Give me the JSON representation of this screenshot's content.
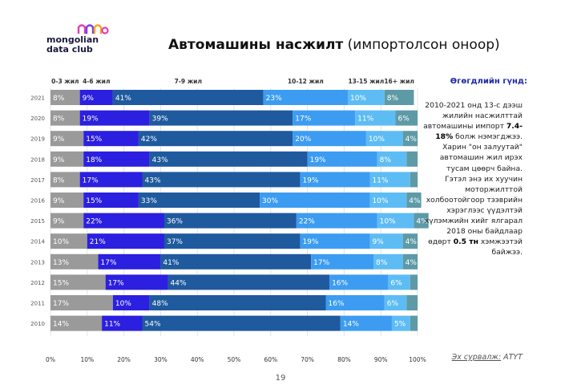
{
  "logo": {
    "line1": "mongolian",
    "line2": "data club",
    "colors": [
      "#e23fb3",
      "#7b3fe2",
      "#f5a623"
    ]
  },
  "title": {
    "bold": "Автомашины насжилт",
    "rest": " (импортолсон оноор)"
  },
  "side": {
    "heading": "Өгөгдлийн гүнд:",
    "p1": "2010-2021 онд 13-с дээш жилийн насжилттай автомашины импорт",
    "p1_bold": "7.4-18%",
    "p1_end": " болж нэмэгджээ.",
    "p2": "Харин \"он залуутай\" автомашин жил ирэх тусам цөөрч байна. Гэтэл энэ их хуучин моторжилттой холбоотойгоор тээврийн хэрэглээс үүдэлтэй хүлэмжийн хийг ялгарал 2018 оны байдлаар өдөрт ",
    "p2_bold": "0.5 тн",
    "p2_end": " хэмжээтэй байжээ."
  },
  "source": {
    "label": "Эх сурвалж:",
    "value": " АТҮТ"
  },
  "page_number": "19",
  "chart_data": {
    "type": "bar",
    "orientation": "horizontal",
    "stacked": true,
    "categories": [
      "2021",
      "2020",
      "2019",
      "2018",
      "2017",
      "2016",
      "2015",
      "2014",
      "2013",
      "2012",
      "2011",
      "2010"
    ],
    "series": [
      {
        "name": "0-3 жил",
        "color": "#9a9a9a",
        "values": [
          8,
          8,
          9,
          9,
          8,
          9,
          9,
          10,
          13,
          15,
          17,
          14
        ]
      },
      {
        "name": "4-6 жил",
        "color": "#2b1fe0",
        "values": [
          9,
          19,
          15,
          18,
          17,
          15,
          22,
          21,
          17,
          17,
          10,
          11
        ]
      },
      {
        "name": "7-9 жил",
        "color": "#1f5a9e",
        "values": [
          41,
          39,
          42,
          43,
          43,
          33,
          36,
          37,
          41,
          44,
          48,
          54
        ]
      },
      {
        "name": "10-12 жил",
        "color": "#3c9cf2",
        "values": [
          23,
          17,
          20,
          19,
          19,
          30,
          22,
          19,
          17,
          16,
          16,
          14
        ]
      },
      {
        "name": "13-15 жил",
        "color": "#5ebcf4",
        "values": [
          10,
          11,
          10,
          8,
          11,
          10,
          10,
          9,
          8,
          6,
          6,
          5
        ]
      },
      {
        "name": "16+ жил",
        "color": "#5d9aa6",
        "values": [
          8,
          6,
          4,
          3,
          2,
          4,
          4,
          4,
          4,
          2,
          3,
          2
        ]
      }
    ],
    "value_labels": [
      [
        "8%",
        "9%",
        "41%",
        "23%",
        "10%",
        "8%"
      ],
      [
        "8%",
        "19%",
        "39%",
        "17%",
        "11%",
        "6%"
      ],
      [
        "9%",
        "15%",
        "42%",
        "20%",
        "10%",
        "4%"
      ],
      [
        "9%",
        "18%",
        "43%",
        "19%",
        "8%",
        ""
      ],
      [
        "8%",
        "17%",
        "43%",
        "19%",
        "11%",
        ""
      ],
      [
        "9%",
        "15%",
        "33%",
        "30%",
        "10%",
        "4%"
      ],
      [
        "9%",
        "22%",
        "36%",
        "22%",
        "10%",
        "4%"
      ],
      [
        "10%",
        "21%",
        "37%",
        "19%",
        "9%",
        "4%"
      ],
      [
        "13%",
        "17%",
        "41%",
        "17%",
        "8%",
        "4%"
      ],
      [
        "15%",
        "17%",
        "44%",
        "16%",
        "6%",
        ""
      ],
      [
        "17%",
        "10%",
        "48%",
        "16%",
        "6%",
        ""
      ],
      [
        "14%",
        "11%",
        "54%",
        "14%",
        "5%",
        ""
      ]
    ],
    "x_ticks": [
      "0%",
      "10%",
      "20%",
      "30%",
      "40%",
      "50%",
      "60%",
      "70%",
      "80%",
      "90%",
      "100%"
    ],
    "xlim": [
      0,
      100
    ],
    "legend_position": "top",
    "grid": true
  }
}
